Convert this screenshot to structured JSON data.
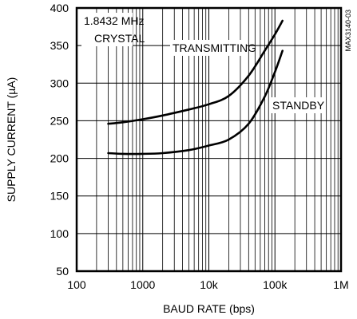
{
  "chart_data": {
    "type": "line",
    "xlabel": "BAUD RATE (bps)",
    "ylabel": "SUPPLY CURRENT (µA)",
    "x_scale": "log",
    "xlim": [
      100,
      1000000
    ],
    "ylim": [
      50,
      400
    ],
    "x_ticks": [
      100,
      1000,
      10000,
      100000,
      1000000
    ],
    "x_tick_labels": [
      "100",
      "1000",
      "10k",
      "100k",
      "1M"
    ],
    "y_ticks": [
      50,
      100,
      150,
      200,
      250,
      300,
      350,
      400
    ],
    "y_tick_labels": [
      "50",
      "100",
      "150",
      "200",
      "250",
      "300",
      "350",
      "400"
    ],
    "grid": true,
    "code": "MAX3140-03",
    "annotations": [
      "1.8432 MHz",
      "CRYSTAL"
    ],
    "series": [
      {
        "name": "TRANSMITTING",
        "x": [
          300,
          500,
          1000,
          2000,
          5000,
          10000,
          20000,
          40000,
          70000,
          100000,
          130000
        ],
        "y": [
          246,
          248,
          252,
          257,
          265,
          272,
          283,
          310,
          343,
          365,
          383
        ]
      },
      {
        "name": "STANDBY",
        "x": [
          300,
          500,
          1000,
          2000,
          5000,
          10000,
          20000,
          40000,
          70000,
          100000,
          130000
        ],
        "y": [
          207,
          206,
          206,
          207,
          211,
          217,
          225,
          246,
          282,
          315,
          343
        ]
      }
    ]
  }
}
